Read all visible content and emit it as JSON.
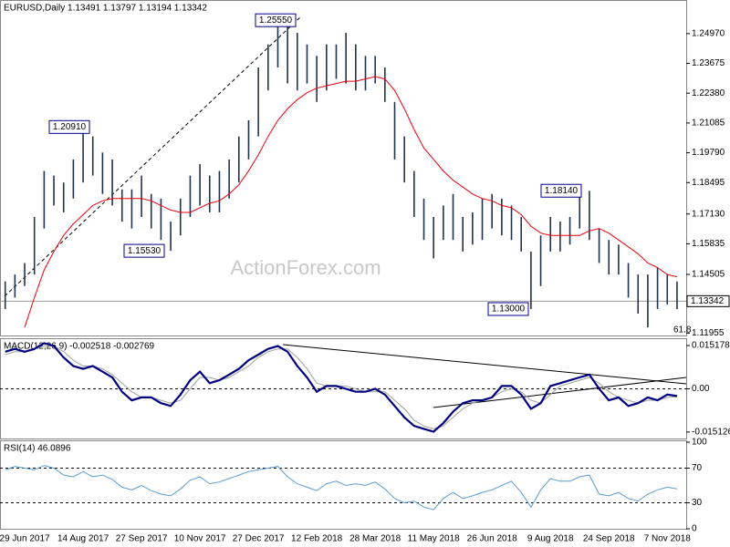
{
  "chart_data": [
    {
      "type": "ohlc",
      "title": "EURUSD,Daily  1.13491 1.13797 1.13194 1.13342",
      "watermark": "ActionForex.com",
      "fib_label": "61.8",
      "categories": [
        null,
        null,
        "29 Jun 2017",
        null,
        null,
        null,
        null,
        null,
        "14 Aug 2017",
        null,
        null,
        null,
        null,
        null,
        "27 Sep 2017",
        null,
        null,
        null,
        null,
        null,
        "10 Nov 2017",
        null,
        null,
        null,
        null,
        null,
        "27 Dec 2017",
        null,
        null,
        null,
        null,
        null,
        "12 Feb 2018",
        null,
        null,
        null,
        null,
        null,
        "28 Mar 2018",
        null,
        null,
        null,
        null,
        null,
        "11 May 2018",
        null,
        null,
        null,
        null,
        null,
        "26 Jun 2018",
        null,
        null,
        null,
        null,
        null,
        "9 Aug 2018",
        null,
        null,
        null,
        null,
        null,
        "24 Sep 2018",
        null,
        null,
        null,
        null,
        null,
        "7 Nov 2018",
        null
      ],
      "high": [
        1.142,
        1.145,
        1.15,
        1.17,
        1.19,
        1.188,
        1.185,
        1.195,
        1.2091,
        1.205,
        1.198,
        1.195,
        1.182,
        1.182,
        1.188,
        1.18,
        1.178,
        1.168,
        1.178,
        1.188,
        1.193,
        1.188,
        1.19,
        1.195,
        1.205,
        1.212,
        1.235,
        1.245,
        1.2555,
        1.2555,
        1.25,
        1.245,
        1.24,
        1.245,
        1.245,
        1.25,
        1.245,
        1.24,
        1.24,
        1.235,
        1.22,
        1.205,
        1.19,
        1.178,
        1.17,
        1.175,
        1.18,
        1.17,
        1.172,
        1.178,
        1.18,
        1.178,
        1.175,
        1.17,
        1.155,
        1.162,
        1.17,
        1.168,
        1.17,
        1.18,
        1.1814,
        1.165,
        1.16,
        1.158,
        1.15,
        1.145,
        1.145,
        1.148,
        1.145,
        1.142
      ],
      "low": [
        1.13,
        1.135,
        1.14,
        1.145,
        1.165,
        1.175,
        1.172,
        1.178,
        1.185,
        1.188,
        1.18,
        1.175,
        1.168,
        1.165,
        1.17,
        1.165,
        1.16,
        1.1553,
        1.162,
        1.17,
        1.175,
        1.172,
        1.172,
        1.178,
        1.185,
        1.195,
        1.205,
        1.225,
        1.235,
        1.228,
        1.225,
        1.228,
        1.22,
        1.225,
        1.23,
        1.228,
        1.225,
        1.225,
        1.228,
        1.22,
        1.195,
        1.185,
        1.17,
        1.16,
        1.152,
        1.16,
        1.16,
        1.155,
        1.158,
        1.16,
        1.165,
        1.162,
        1.16,
        1.155,
        1.13,
        1.14,
        1.155,
        1.155,
        1.158,
        1.165,
        1.16,
        1.15,
        1.145,
        1.145,
        1.135,
        1.128,
        1.122,
        1.13,
        1.132,
        1.13
      ],
      "color": "#1f3350",
      "ma": {
        "color": "#e8000b",
        "values": [
          null,
          null,
          1.122,
          1.135,
          1.147,
          1.155,
          1.162,
          1.167,
          1.171,
          1.175,
          1.177,
          1.178,
          1.178,
          1.178,
          1.178,
          1.177,
          1.175,
          1.173,
          1.172,
          1.172,
          1.174,
          1.176,
          1.177,
          1.18,
          1.184,
          1.19,
          1.197,
          1.205,
          1.212,
          1.217,
          1.221,
          1.224,
          1.226,
          1.227,
          1.228,
          1.229,
          1.229,
          1.23,
          1.231,
          1.23,
          1.225,
          1.217,
          1.208,
          1.2,
          1.195,
          1.19,
          1.186,
          1.183,
          1.18,
          1.178,
          1.177,
          1.175,
          1.174,
          1.171,
          1.166,
          1.163,
          1.162,
          1.162,
          1.162,
          1.162,
          1.164,
          1.165,
          1.163,
          1.16,
          1.157,
          1.154,
          1.15,
          1.148,
          1.145,
          1.144
        ]
      },
      "ylim": [
        1.1185,
        1.2635
      ],
      "yticks": [
        {
          "value": 1.2497,
          "label": "1.24970"
        },
        1.23675,
        {
          "value": 1.2238,
          "label": "1.22380"
        },
        1.21085,
        {
          "value": 1.1979,
          "label": "1.19790"
        },
        1.18495,
        {
          "value": 1.1713,
          "label": "1.17130"
        },
        1.15835,
        1.14505,
        1.11955
      ],
      "last_price": 1.13342,
      "price_labels": [
        {
          "value": 1.2555,
          "label": "1.25550"
        },
        {
          "value": 1.2091,
          "label": "1.20910"
        },
        {
          "value": 1.1553,
          "label": "1.15530"
        },
        {
          "value": 1.13,
          "label": "1.13000"
        },
        {
          "value": 1.1814,
          "label": "1.18140"
        }
      ]
    },
    {
      "type": "macd",
      "title": "MACD(12,26,9) -0.002518 -0.002769",
      "macd": {
        "color": "#000080",
        "values": [
          0.013,
          0.014,
          0.013,
          0.014,
          0.016,
          0.015,
          0.011,
          0.008,
          0.007,
          0.008,
          0.006,
          0.004,
          -0.001,
          -0.004,
          -0.003,
          -0.003,
          -0.005,
          -0.006,
          -0.002,
          0.003,
          0.006,
          0.002,
          0.003,
          0.005,
          0.007,
          0.01,
          0.012,
          0.014,
          0.015,
          0.013,
          0.008,
          0.004,
          -0.001,
          0.001,
          0.001,
          0.0,
          -0.001,
          -0.001,
          0.0,
          -0.002,
          -0.006,
          -0.01,
          -0.013,
          -0.014,
          -0.015,
          -0.012,
          -0.008,
          -0.005,
          -0.004,
          -0.004,
          -0.003,
          0.001,
          0.001,
          -0.002,
          -0.007,
          -0.005,
          0.001,
          0.002,
          0.003,
          0.004,
          0.005,
          0.0,
          -0.004,
          -0.003,
          -0.006,
          -0.005,
          -0.003,
          -0.004,
          -0.002,
          -0.0025
        ]
      },
      "signal": {
        "color": "#a0a0a0",
        "values": [
          0.012,
          0.013,
          0.013,
          0.014,
          0.015,
          0.015,
          0.013,
          0.01,
          0.008,
          0.008,
          0.007,
          0.005,
          0.002,
          -0.001,
          -0.003,
          -0.003,
          -0.004,
          -0.005,
          -0.004,
          0.0,
          0.004,
          0.004,
          0.003,
          0.004,
          0.006,
          0.008,
          0.011,
          0.013,
          0.014,
          0.014,
          0.011,
          0.007,
          0.002,
          0.001,
          0.001,
          0.001,
          0.0,
          -0.001,
          -0.001,
          -0.001,
          -0.004,
          -0.007,
          -0.011,
          -0.013,
          -0.014,
          -0.013,
          -0.01,
          -0.007,
          -0.005,
          -0.004,
          -0.003,
          -0.001,
          0.0,
          -0.001,
          -0.004,
          -0.005,
          -0.002,
          0.001,
          0.002,
          0.003,
          0.004,
          0.002,
          -0.001,
          -0.003,
          -0.004,
          -0.005,
          -0.004,
          -0.004,
          -0.003,
          -0.0028
        ]
      },
      "ylim": [
        -0.0174,
        0.0171
      ],
      "yticks": [
        0.015178,
        {
          "value": 0,
          "label": "0.00"
        },
        -0.015126
      ]
    },
    {
      "type": "rsi",
      "title": "RSI(14) 46.0896",
      "color": "#5b9bd5",
      "values": [
        68,
        72,
        70,
        68,
        73,
        70,
        62,
        60,
        66,
        60,
        62,
        57,
        48,
        45,
        50,
        44,
        40,
        38,
        46,
        56,
        60,
        52,
        54,
        58,
        62,
        66,
        68,
        70,
        72,
        60,
        52,
        48,
        44,
        52,
        55,
        50,
        52,
        50,
        54,
        46,
        35,
        30,
        32,
        25,
        22,
        35,
        42,
        35,
        38,
        42,
        45,
        50,
        55,
        42,
        25,
        45,
        58,
        55,
        55,
        60,
        62,
        40,
        38,
        42,
        35,
        32,
        40,
        45,
        48,
        46
      ],
      "ylim": [
        0,
        100
      ],
      "yticks": [
        0,
        30,
        70,
        100
      ]
    }
  ]
}
